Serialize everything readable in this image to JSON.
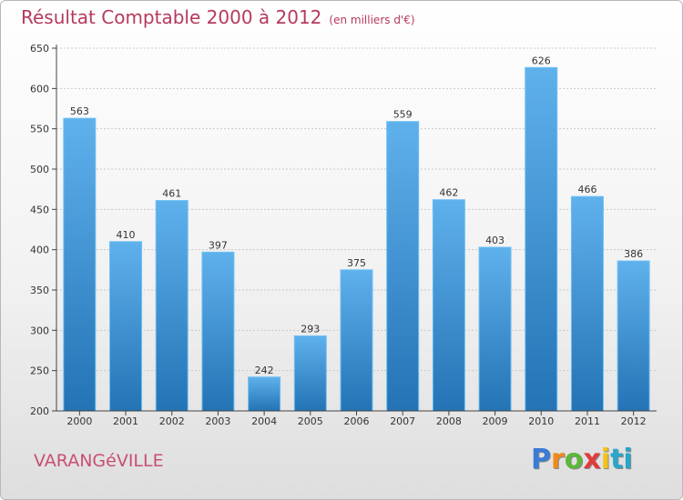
{
  "header": {
    "title": "Résultat Comptable 2000 à 2012",
    "subtitle": "(en milliers d'€)"
  },
  "footer": {
    "place": "VARANGéVILLE",
    "logo_text": "Proxiti",
    "logo_letters": [
      "P",
      "r",
      "o",
      "x",
      "i",
      "ti"
    ]
  },
  "colors": {
    "title": "#b53a5c",
    "bar_top": "#5aaeea",
    "bar_bottom": "#2576b8",
    "place": "#c94f72"
  },
  "chart_data": {
    "type": "bar",
    "title": "Résultat Comptable 2000 à 2012",
    "subtitle": "(en milliers d'€)",
    "categories": [
      "2000",
      "2001",
      "2002",
      "2003",
      "2004",
      "2005",
      "2006",
      "2007",
      "2008",
      "2009",
      "2010",
      "2011",
      "2012"
    ],
    "values": [
      563,
      410,
      461,
      397,
      242,
      293,
      375,
      559,
      462,
      403,
      626,
      466,
      386
    ],
    "data_labels": [
      "563",
      "410",
      "461",
      "397",
      "242",
      "293",
      "375",
      "559",
      "462",
      "403",
      "626",
      "466",
      "386"
    ],
    "yticks": [
      "200",
      "250",
      "300",
      "350",
      "400",
      "450",
      "500",
      "550",
      "600",
      "650"
    ],
    "ylim": [
      200,
      650
    ],
    "xlabel": "",
    "ylabel": "",
    "grid": true
  }
}
